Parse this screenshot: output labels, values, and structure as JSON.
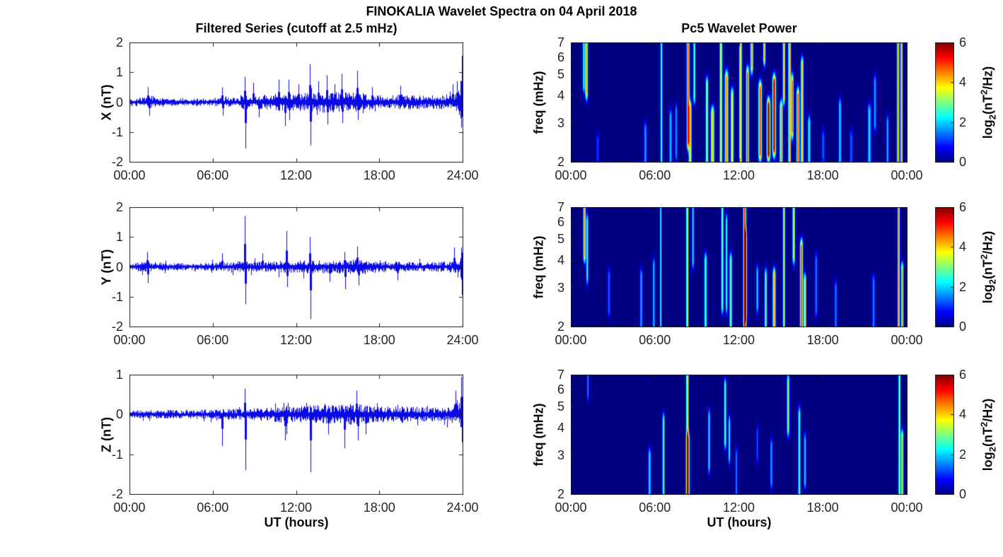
{
  "figure_title": "FINOKALIA Wavelet Spectra on 04 April 2018",
  "colorbar": {
    "ticks": [
      "6",
      "4",
      "2",
      "0"
    ],
    "clim": [
      0,
      6
    ],
    "label_parts": {
      "p1": "log",
      "sub": "2",
      "p2": "(nT",
      "sup": "2",
      "p3": "/Hz)"
    }
  },
  "palette": {
    "line": "#0a0ae6",
    "background": "#ffffff",
    "axis": "#1e1e1e",
    "heatmap_low": "#000080",
    "heatmap_high": "#800000"
  },
  "chart_data": [
    {
      "id": "series-x",
      "type": "line",
      "title": "Filtered Series (cutoff at 2.5 mHz)",
      "ylabel": "X (nT)",
      "ylim": [
        -2,
        2
      ],
      "yticks": [
        "2",
        "1",
        "0",
        "-1",
        "-2"
      ],
      "xticks": [
        "00:00",
        "06:00",
        "12:00",
        "18:00",
        "24:00"
      ],
      "xtick_hours": [
        0,
        6,
        12,
        18,
        24
      ],
      "seed": 101,
      "noise_envelope": [
        [
          0,
          0.13
        ],
        [
          1,
          0.17
        ],
        [
          1.6,
          0.22
        ],
        [
          2.2,
          0.14
        ],
        [
          4.5,
          0.12
        ],
        [
          6,
          0.14
        ],
        [
          6.8,
          0.17
        ],
        [
          7.6,
          0.15
        ],
        [
          8.3,
          0.26
        ],
        [
          9,
          0.2
        ],
        [
          9.8,
          0.26
        ],
        [
          10.8,
          0.3
        ],
        [
          11.6,
          0.28
        ],
        [
          12.4,
          0.3
        ],
        [
          13.2,
          0.33
        ],
        [
          14.2,
          0.37
        ],
        [
          15,
          0.34
        ],
        [
          16,
          0.33
        ],
        [
          16.8,
          0.3
        ],
        [
          17.6,
          0.25
        ],
        [
          18.4,
          0.22
        ],
        [
          19.4,
          0.25
        ],
        [
          20.4,
          0.26
        ],
        [
          21.2,
          0.22
        ],
        [
          22.2,
          0.24
        ],
        [
          23,
          0.27
        ],
        [
          23.6,
          0.35
        ],
        [
          23.92,
          0.9
        ],
        [
          24,
          1.35
        ]
      ],
      "spikes": [
        [
          1.35,
          0.5
        ],
        [
          1.45,
          -0.45
        ],
        [
          6.7,
          0.5
        ],
        [
          6.75,
          -0.45
        ],
        [
          8.3,
          0.85
        ],
        [
          8.35,
          -1.55
        ],
        [
          8.9,
          0.65
        ],
        [
          9.3,
          -0.5
        ],
        [
          10.75,
          0.75
        ],
        [
          11.2,
          -0.8
        ],
        [
          11.45,
          0.75
        ],
        [
          11.5,
          -0.6
        ],
        [
          12.2,
          0.6
        ],
        [
          13.0,
          1.27
        ],
        [
          13.05,
          -1.45
        ],
        [
          13.6,
          0.7
        ],
        [
          14.2,
          0.9
        ],
        [
          14.25,
          -0.75
        ],
        [
          14.8,
          0.6
        ],
        [
          15.3,
          0.95
        ],
        [
          15.35,
          -0.7
        ],
        [
          16.4,
          1.05
        ],
        [
          16.45,
          -0.6
        ],
        [
          17.5,
          0.5
        ],
        [
          19.5,
          0.55
        ],
        [
          23.3,
          0.6
        ],
        [
          23.6,
          0.7
        ],
        [
          23.96,
          1.55
        ],
        [
          23.99,
          -1.1
        ]
      ]
    },
    {
      "id": "series-y",
      "type": "line",
      "ylabel": "Y (nT)",
      "ylim": [
        -2,
        2
      ],
      "yticks": [
        "2",
        "1",
        "0",
        "-1",
        "-2"
      ],
      "xticks": [
        "00:00",
        "06:00",
        "12:00",
        "18:00",
        "24:00"
      ],
      "xtick_hours": [
        0,
        6,
        12,
        18,
        24
      ],
      "seed": 202,
      "noise_envelope": [
        [
          0,
          0.12
        ],
        [
          1.2,
          0.19
        ],
        [
          2,
          0.13
        ],
        [
          4.5,
          0.12
        ],
        [
          6.5,
          0.15
        ],
        [
          8.3,
          0.21
        ],
        [
          9,
          0.17
        ],
        [
          10,
          0.19
        ],
        [
          11,
          0.21
        ],
        [
          12,
          0.23
        ],
        [
          13,
          0.23
        ],
        [
          14,
          0.21
        ],
        [
          15,
          0.21
        ],
        [
          16,
          0.25
        ],
        [
          16.7,
          0.29
        ],
        [
          17.4,
          0.21
        ],
        [
          18.5,
          0.18
        ],
        [
          20,
          0.17
        ],
        [
          21.5,
          0.16
        ],
        [
          22.5,
          0.17
        ],
        [
          23.2,
          0.19
        ],
        [
          23.7,
          0.26
        ],
        [
          24,
          0.6
        ]
      ],
      "spikes": [
        [
          1.25,
          0.5
        ],
        [
          1.3,
          -0.55
        ],
        [
          6.7,
          0.45
        ],
        [
          8.3,
          1.7
        ],
        [
          8.35,
          -1.25
        ],
        [
          9.6,
          0.45
        ],
        [
          11.3,
          1.2
        ],
        [
          11.35,
          -0.68
        ],
        [
          13.0,
          1.0
        ],
        [
          13.05,
          -1.75
        ],
        [
          14.4,
          -0.5
        ],
        [
          15.5,
          0.5
        ],
        [
          15.55,
          -0.75
        ],
        [
          16.4,
          0.68
        ],
        [
          16.5,
          -0.62
        ],
        [
          19.3,
          -0.45
        ],
        [
          23.4,
          0.65
        ],
        [
          23.9,
          0.65
        ],
        [
          23.97,
          -0.95
        ]
      ]
    },
    {
      "id": "series-z",
      "type": "line",
      "ylabel": "Z (nT)",
      "ylim": [
        -2,
        1
      ],
      "yticks": [
        "1",
        "0",
        "-1",
        "-2"
      ],
      "xlabel": "UT (hours)",
      "xticks": [
        "00:00",
        "06:00",
        "12:00",
        "18:00",
        "24:00"
      ],
      "xtick_hours": [
        0,
        6,
        12,
        18,
        24
      ],
      "seed": 303,
      "noise_envelope": [
        [
          0,
          0.1
        ],
        [
          2,
          0.11
        ],
        [
          4,
          0.11
        ],
        [
          6,
          0.13
        ],
        [
          8,
          0.14
        ],
        [
          9,
          0.16
        ],
        [
          10,
          0.17
        ],
        [
          11,
          0.21
        ],
        [
          12,
          0.21
        ],
        [
          13,
          0.23
        ],
        [
          14,
          0.23
        ],
        [
          15,
          0.25
        ],
        [
          16,
          0.27
        ],
        [
          16.8,
          0.25
        ],
        [
          17.5,
          0.21
        ],
        [
          18.5,
          0.2
        ],
        [
          19.5,
          0.22
        ],
        [
          20.5,
          0.2
        ],
        [
          21.5,
          0.18
        ],
        [
          22.5,
          0.18
        ],
        [
          23.2,
          0.21
        ],
        [
          23.7,
          0.3
        ],
        [
          24,
          0.7
        ]
      ],
      "spikes": [
        [
          6.7,
          -0.8
        ],
        [
          8.3,
          0.65
        ],
        [
          8.35,
          -1.4
        ],
        [
          11.2,
          -0.65
        ],
        [
          11.3,
          -0.5
        ],
        [
          13.05,
          -1.45
        ],
        [
          14.3,
          -0.5
        ],
        [
          15.5,
          -0.85
        ],
        [
          16.35,
          0.6
        ],
        [
          16.45,
          -0.65
        ],
        [
          17.0,
          -0.5
        ],
        [
          23.5,
          0.6
        ],
        [
          23.9,
          0.95
        ],
        [
          23.97,
          -0.7
        ],
        [
          23.99,
          1.0
        ]
      ]
    },
    {
      "id": "wavelet-x",
      "type": "heatmap",
      "title": "Pc5 Wavelet Power",
      "ylabel": "freq (mHz)",
      "ylim_mhz": [
        2,
        7
      ],
      "yscale": "log",
      "yticks": [
        "7",
        "6",
        "5",
        "4",
        "3",
        "2"
      ],
      "xticks": [
        "00:00",
        "06:00",
        "12:00",
        "18:00",
        "00:00"
      ],
      "xtick_hours": [
        0,
        6,
        12,
        18,
        24
      ],
      "clim": [
        0,
        6
      ],
      "events": [
        [
          0.9,
          4.5,
          7,
          2.5,
          0.08
        ],
        [
          1.1,
          4.2,
          7,
          4.5,
          0.09
        ],
        [
          1.9,
          2.1,
          2.5,
          1.2,
          0.1
        ],
        [
          5.3,
          2,
          2.8,
          1.8,
          0.1
        ],
        [
          6.45,
          2,
          7,
          3,
          0.07
        ],
        [
          7.1,
          2,
          3.2,
          2,
          0.1
        ],
        [
          7.5,
          2.2,
          3.4,
          1.8,
          0.08
        ],
        [
          8.35,
          2.5,
          7,
          5,
          0.09
        ],
        [
          8.5,
          2,
          3.5,
          4,
          0.1
        ],
        [
          8.8,
          4,
          7,
          3,
          0.08
        ],
        [
          9.7,
          2,
          4.5,
          3.5,
          0.09
        ],
        [
          10.1,
          2,
          3.3,
          4.2,
          0.12
        ],
        [
          10.7,
          2,
          7,
          3.8,
          0.09
        ],
        [
          11.1,
          2,
          4.8,
          4.6,
          0.12
        ],
        [
          11.5,
          2,
          4,
          4,
          0.1
        ],
        [
          12.1,
          2,
          7,
          4.2,
          0.09
        ],
        [
          12.6,
          2,
          5,
          5,
          0.1
        ],
        [
          12.9,
          5.5,
          7,
          4.5,
          0.09
        ],
        [
          13.5,
          2.2,
          4.3,
          5,
          0.12
        ],
        [
          13.8,
          6,
          7,
          4.2,
          0.08
        ],
        [
          14.1,
          2.2,
          3.6,
          6,
          0.12
        ],
        [
          14.5,
          2.3,
          4.6,
          5.8,
          0.12
        ],
        [
          15.0,
          2,
          3.5,
          4.6,
          0.1
        ],
        [
          15.2,
          4,
          7,
          4.2,
          0.08
        ],
        [
          15.6,
          2,
          7,
          4.4,
          0.09
        ],
        [
          15.8,
          2.8,
          4.6,
          5,
          0.08
        ],
        [
          16.2,
          2,
          4,
          5,
          0.1
        ],
        [
          16.5,
          2,
          5.5,
          4.4,
          0.09
        ],
        [
          17.0,
          2,
          3,
          2.6,
          0.1
        ],
        [
          18.0,
          2,
          2.6,
          1.4,
          0.1
        ],
        [
          19.2,
          2,
          3.6,
          2.2,
          0.1
        ],
        [
          20.0,
          2,
          2.6,
          1.4,
          0.1
        ],
        [
          21.3,
          2,
          3.4,
          2.2,
          0.12
        ],
        [
          21.7,
          3,
          4.6,
          1.8,
          0.1
        ],
        [
          22.6,
          2,
          3,
          2,
          0.08
        ],
        [
          23.35,
          2,
          7,
          4.8,
          0.08
        ],
        [
          23.6,
          2,
          7,
          4.2,
          0.07
        ]
      ]
    },
    {
      "id": "wavelet-y",
      "type": "heatmap",
      "ylabel": "freq (mHz)",
      "ylim_mhz": [
        2,
        7
      ],
      "yscale": "log",
      "yticks": [
        "7",
        "6",
        "5",
        "4",
        "3",
        "2"
      ],
      "xticks": [
        "00:00",
        "06:00",
        "12:00",
        "18:00",
        "00:00"
      ],
      "xtick_hours": [
        0,
        6,
        12,
        18,
        24
      ],
      "clim": [
        0,
        6
      ],
      "events": [
        [
          0.95,
          4.3,
          7,
          4.5,
          0.08
        ],
        [
          1.15,
          3.4,
          6,
          2.6,
          0.08
        ],
        [
          2.7,
          2.4,
          3.4,
          1.4,
          0.1
        ],
        [
          5.0,
          2,
          3.4,
          1.8,
          0.1
        ],
        [
          5.9,
          2,
          3.8,
          2,
          0.08
        ],
        [
          6.4,
          2,
          7,
          2.6,
          0.06
        ],
        [
          8.3,
          2,
          7,
          4,
          0.08
        ],
        [
          8.7,
          4,
          7,
          2.4,
          0.07
        ],
        [
          9.6,
          2,
          4,
          3,
          0.09
        ],
        [
          10.8,
          2.5,
          7,
          3.2,
          0.08
        ],
        [
          11.1,
          2.5,
          6,
          2.8,
          0.07
        ],
        [
          11.4,
          2,
          4,
          3.2,
          0.09
        ],
        [
          12.4,
          2,
          7,
          5.2,
          0.1
        ],
        [
          12.45,
          2.3,
          5,
          5.6,
          0.09
        ],
        [
          13.3,
          2.5,
          3.5,
          2.2,
          0.08
        ],
        [
          13.9,
          2,
          3.4,
          3,
          0.09
        ],
        [
          14.5,
          2,
          3.4,
          4.4,
          0.1
        ],
        [
          15.2,
          2,
          7,
          3.4,
          0.08
        ],
        [
          15.9,
          4.2,
          7,
          3.6,
          0.09
        ],
        [
          16.45,
          2,
          4.6,
          5,
          0.1
        ],
        [
          16.7,
          2,
          3.2,
          4.2,
          0.08
        ],
        [
          17.5,
          2.4,
          4,
          1.6,
          0.09
        ],
        [
          18.9,
          2,
          3,
          1.6,
          0.09
        ],
        [
          21.6,
          2,
          3.2,
          1.6,
          0.1
        ],
        [
          23.4,
          2,
          7,
          4.4,
          0.07
        ],
        [
          23.65,
          2,
          3.6,
          4.6,
          0.08
        ]
      ]
    },
    {
      "id": "wavelet-z",
      "type": "heatmap",
      "ylabel": "freq (mHz)",
      "ylim_mhz": [
        2,
        7
      ],
      "yscale": "log",
      "yticks": [
        "7",
        "6",
        "5",
        "4",
        "3",
        "2"
      ],
      "xlabel": "UT (hours)",
      "xticks": [
        "00:00",
        "06:00",
        "12:00",
        "18:00",
        "00:00"
      ],
      "xtick_hours": [
        0,
        6,
        12,
        18,
        24
      ],
      "clim": [
        0,
        6
      ],
      "events": [
        [
          1.2,
          5.8,
          7,
          1.8,
          0.06
        ],
        [
          5.6,
          2,
          3,
          2.2,
          0.1
        ],
        [
          6.6,
          2,
          4.3,
          3,
          0.08
        ],
        [
          8.3,
          2,
          7,
          4,
          0.09
        ],
        [
          8.35,
          2,
          3.5,
          3.6,
          0.12
        ],
        [
          9.85,
          2.7,
          4.5,
          2.2,
          0.08
        ],
        [
          11.0,
          3.5,
          6.2,
          3,
          0.08
        ],
        [
          11.3,
          3,
          4.2,
          2.6,
          0.07
        ],
        [
          11.8,
          2,
          3,
          1.6,
          0.08
        ],
        [
          13.3,
          3,
          3.8,
          1.3,
          0.08
        ],
        [
          14.3,
          2.3,
          3.3,
          1.8,
          0.09
        ],
        [
          15.5,
          4,
          6.5,
          3.2,
          0.09
        ],
        [
          16.3,
          2,
          4.6,
          2.8,
          0.09
        ],
        [
          16.7,
          2.3,
          3.5,
          2.2,
          0.08
        ],
        [
          23.45,
          2,
          7,
          3.6,
          0.07
        ],
        [
          23.65,
          2,
          3.6,
          4.4,
          0.08
        ]
      ]
    }
  ]
}
